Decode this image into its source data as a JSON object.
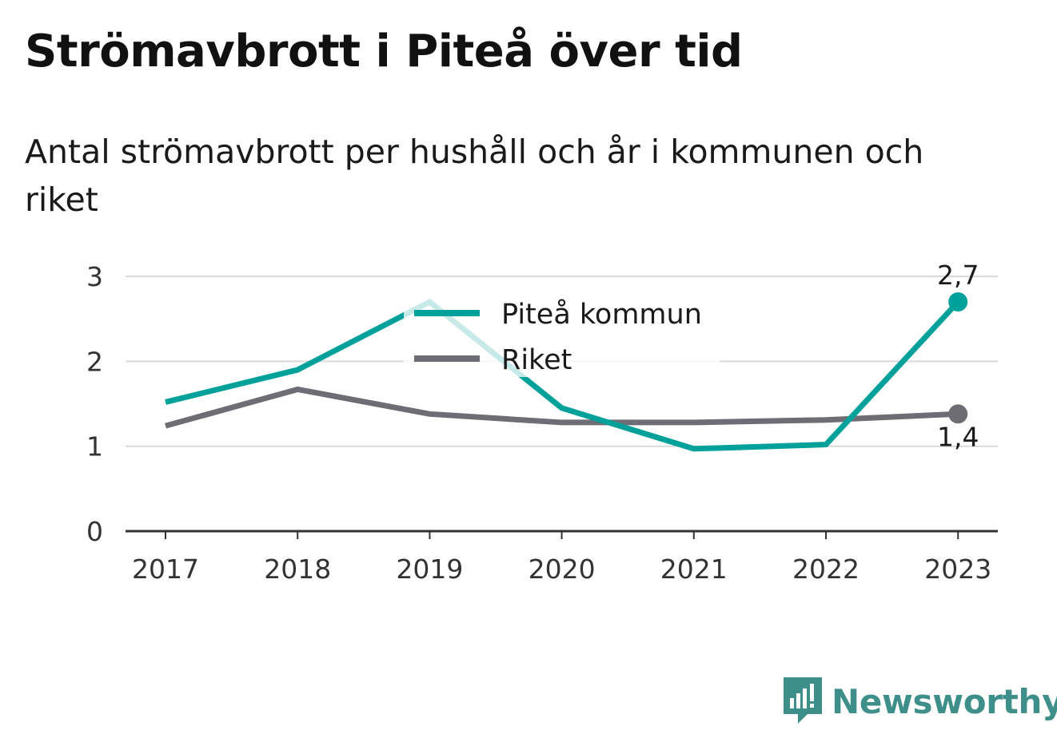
{
  "title": "Strömavbrott i Piteå över tid",
  "subtitle": "Antal strömavbrott per hushåll och år i kommunen och riket",
  "brand": "Newsworthy",
  "colors": {
    "pitea": "#00a19a",
    "riket": "#6e6d73",
    "grid": "#d9d9d9",
    "axis": "#333333",
    "brand": "#3e8f8a"
  },
  "chart_data": {
    "type": "line",
    "x": [
      "2017",
      "2018",
      "2019",
      "2020",
      "2021",
      "2022",
      "2023"
    ],
    "ylim": [
      0,
      3
    ],
    "yticks": [
      "0",
      "1",
      "2",
      "3"
    ],
    "legend_position": "top-center",
    "grid": true,
    "series": [
      {
        "name": "Piteå kommun",
        "values": [
          1.52,
          1.9,
          2.7,
          1.45,
          0.97,
          1.02,
          2.7
        ],
        "end_label": "2,7"
      },
      {
        "name": "Riket",
        "values": [
          1.24,
          1.67,
          1.38,
          1.28,
          1.28,
          1.31,
          1.38
        ],
        "end_label": "1,4"
      }
    ]
  }
}
